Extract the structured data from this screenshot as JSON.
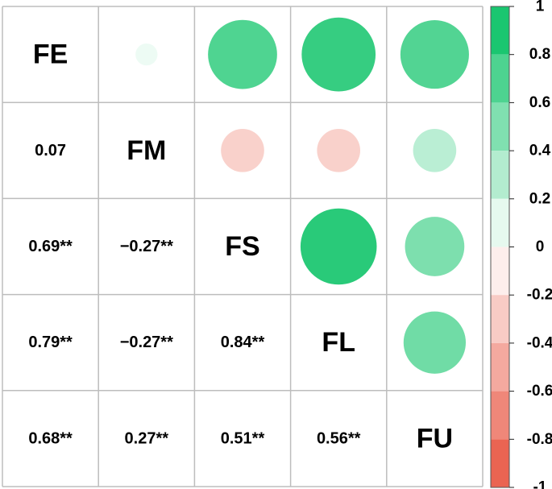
{
  "chart_data": {
    "type": "correlation-matrix",
    "variables": [
      "FE",
      "FM",
      "FS",
      "FL",
      "FU"
    ],
    "coefficients": [
      [
        1,
        0.07,
        0.69,
        0.79,
        0.68
      ],
      [
        0.07,
        1,
        -0.27,
        -0.27,
        0.27
      ],
      [
        0.69,
        -0.27,
        1,
        0.84,
        0.51
      ],
      [
        0.79,
        -0.27,
        0.84,
        1,
        0.56
      ],
      [
        0.68,
        0.27,
        0.51,
        0.56,
        1
      ]
    ],
    "lower_labels": [
      [
        "",
        "",
        "",
        "",
        ""
      ],
      [
        "0.07",
        "",
        "",
        "",
        ""
      ],
      [
        "0.69**",
        "−0.27**",
        "",
        "",
        ""
      ],
      [
        "0.79**",
        "−0.27**",
        "0.84**",
        "",
        ""
      ],
      [
        "0.68**",
        "0.27**",
        "0.51**",
        "0.56**",
        ""
      ]
    ],
    "upper_shape": "circle",
    "colorbar": {
      "range": [
        -1,
        1
      ],
      "ticks": [
        1,
        0.8,
        0.6,
        0.4,
        0.2,
        0,
        -0.2,
        -0.4,
        -0.6,
        -0.8,
        -1
      ],
      "tick_labels": [
        "1",
        "0.8",
        "0.6",
        "0.4",
        "0.2",
        "0",
        "-0.2",
        "-0.4",
        "-0.6",
        "-0.8",
        "-1"
      ],
      "negative_color": "#e8533f",
      "zero_color": "#ffffff",
      "positive_color": "#00c060"
    },
    "grid_color": "#bdbdbd"
  }
}
